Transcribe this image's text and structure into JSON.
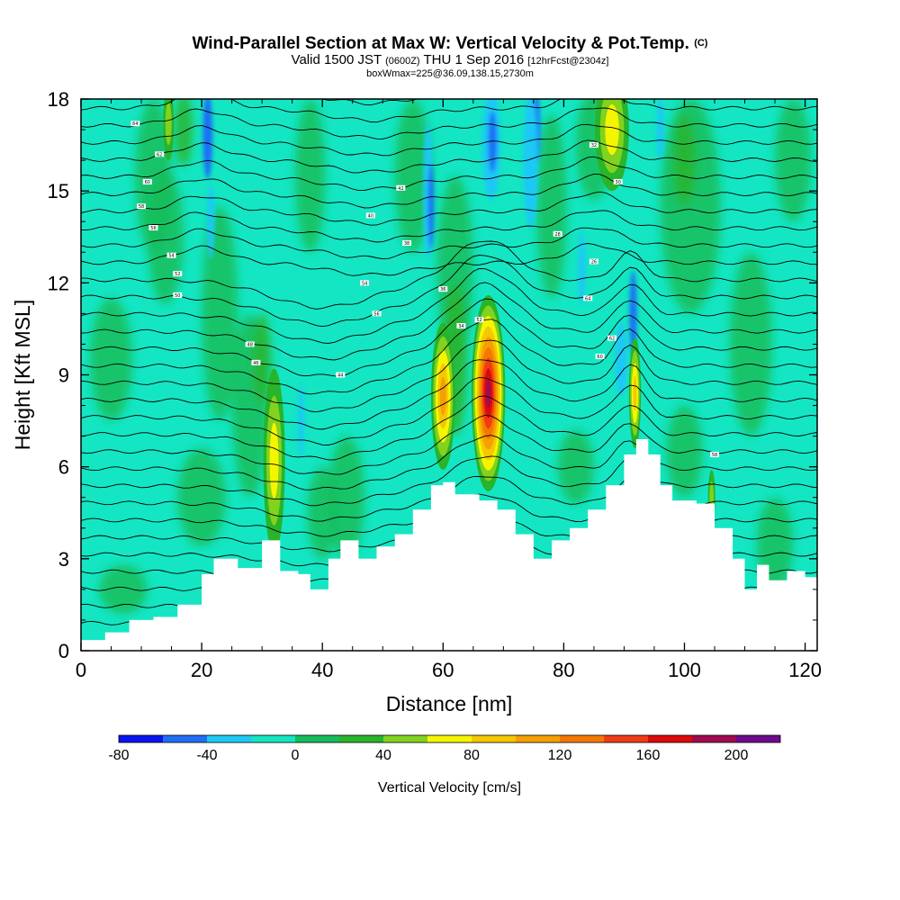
{
  "header": {
    "title": "Wind-Parallel Section at Max W: Vertical Velocity & Pot.Temp.",
    "copyright": "(C)",
    "valid_prefix": "Valid 1500 JST",
    "valid_utc": "(0600Z)",
    "valid_date": "THU 1 Sep 2016",
    "forecast": "[12hrFcst@2304z]",
    "box_info": "boxWmax=225@36.09,138.15,2730m"
  },
  "chart_data": {
    "type": "heatmap",
    "title": "Wind-Parallel Section at Max W: Vertical Velocity & Pot.Temp.",
    "xlabel": "Distance [nm]",
    "ylabel": "Height [Kft MSL]",
    "xlim": [
      0,
      122
    ],
    "ylim": [
      0,
      18
    ],
    "x_ticks": [
      "0",
      "20",
      "40",
      "60",
      "80",
      "100",
      "120"
    ],
    "y_ticks": [
      "0",
      "3",
      "6",
      "9",
      "12",
      "15",
      "18"
    ],
    "colorbar": {
      "label": "Vertical Velocity [cm/s]",
      "tick_labels": [
        "-80",
        "-40",
        "0",
        "40",
        "80",
        "120",
        "160",
        "200"
      ],
      "levels": [
        -80,
        -60,
        -40,
        -20,
        0,
        20,
        40,
        60,
        80,
        100,
        120,
        140,
        160,
        180,
        200,
        220
      ],
      "colors": [
        "#0a14f0",
        "#1f6ef5",
        "#1ec8f5",
        "#14e6c3",
        "#14bd5a",
        "#28b42b",
        "#82d21e",
        "#f5f500",
        "#f5c800",
        "#f5a000",
        "#f57800",
        "#f03c14",
        "#dc0a0a",
        "#a00a50",
        "#6e0a8c"
      ]
    },
    "terrain_height_kft": [
      {
        "x": 0,
        "y": 0.35
      },
      {
        "x": 4,
        "y": 0.6
      },
      {
        "x": 8,
        "y": 1.0
      },
      {
        "x": 12,
        "y": 1.1
      },
      {
        "x": 16,
        "y": 1.5
      },
      {
        "x": 20,
        "y": 2.5
      },
      {
        "x": 22,
        "y": 3.0
      },
      {
        "x": 26,
        "y": 2.7
      },
      {
        "x": 30,
        "y": 3.6
      },
      {
        "x": 33,
        "y": 2.6
      },
      {
        "x": 36,
        "y": 2.5
      },
      {
        "x": 38,
        "y": 2.0
      },
      {
        "x": 41,
        "y": 3.0
      },
      {
        "x": 43,
        "y": 3.6
      },
      {
        "x": 46,
        "y": 3.0
      },
      {
        "x": 49,
        "y": 3.4
      },
      {
        "x": 52,
        "y": 3.8
      },
      {
        "x": 55,
        "y": 4.6
      },
      {
        "x": 58,
        "y": 5.4
      },
      {
        "x": 60,
        "y": 5.5
      },
      {
        "x": 62,
        "y": 5.1
      },
      {
        "x": 66,
        "y": 4.9
      },
      {
        "x": 69,
        "y": 4.6
      },
      {
        "x": 72,
        "y": 3.8
      },
      {
        "x": 75,
        "y": 3.0
      },
      {
        "x": 78,
        "y": 3.6
      },
      {
        "x": 81,
        "y": 4.0
      },
      {
        "x": 84,
        "y": 4.6
      },
      {
        "x": 87,
        "y": 5.4
      },
      {
        "x": 90,
        "y": 6.4
      },
      {
        "x": 92,
        "y": 6.9
      },
      {
        "x": 94,
        "y": 6.4
      },
      {
        "x": 96,
        "y": 5.4
      },
      {
        "x": 98,
        "y": 4.9
      },
      {
        "x": 102,
        "y": 4.8
      },
      {
        "x": 105,
        "y": 4.0
      },
      {
        "x": 108,
        "y": 3.0
      },
      {
        "x": 110,
        "y": 2.0
      },
      {
        "x": 112,
        "y": 2.8
      },
      {
        "x": 114,
        "y": 2.3
      },
      {
        "x": 117,
        "y": 2.6
      },
      {
        "x": 120,
        "y": 2.4
      },
      {
        "x": 122,
        "y": 2.4
      }
    ],
    "vertical_velocity_features_cm_s": [
      {
        "x": 67.5,
        "y": 8.6,
        "peak": 225
      },
      {
        "x": 60.0,
        "y": 8.3,
        "peak": 110
      },
      {
        "x": 32.0,
        "y": 5.6,
        "peak": 80
      },
      {
        "x": 91.8,
        "y": 8.4,
        "peak": 80
      },
      {
        "x": 68.0,
        "y": 16.5,
        "peak": -40
      },
      {
        "x": 75.5,
        "y": 17.0,
        "peak": -50
      },
      {
        "x": 35.5,
        "y": 17.3,
        "peak": -50
      },
      {
        "x": 88.0,
        "y": 17.0,
        "peak": 70
      }
    ],
    "potential_temperature_labels_K": [
      "64",
      "62",
      "60",
      "58",
      "56",
      "54",
      "52",
      "50",
      "48",
      "46",
      "44",
      "42",
      "40",
      "38",
      "36",
      "34",
      "32",
      "30",
      "28",
      "26"
    ]
  }
}
